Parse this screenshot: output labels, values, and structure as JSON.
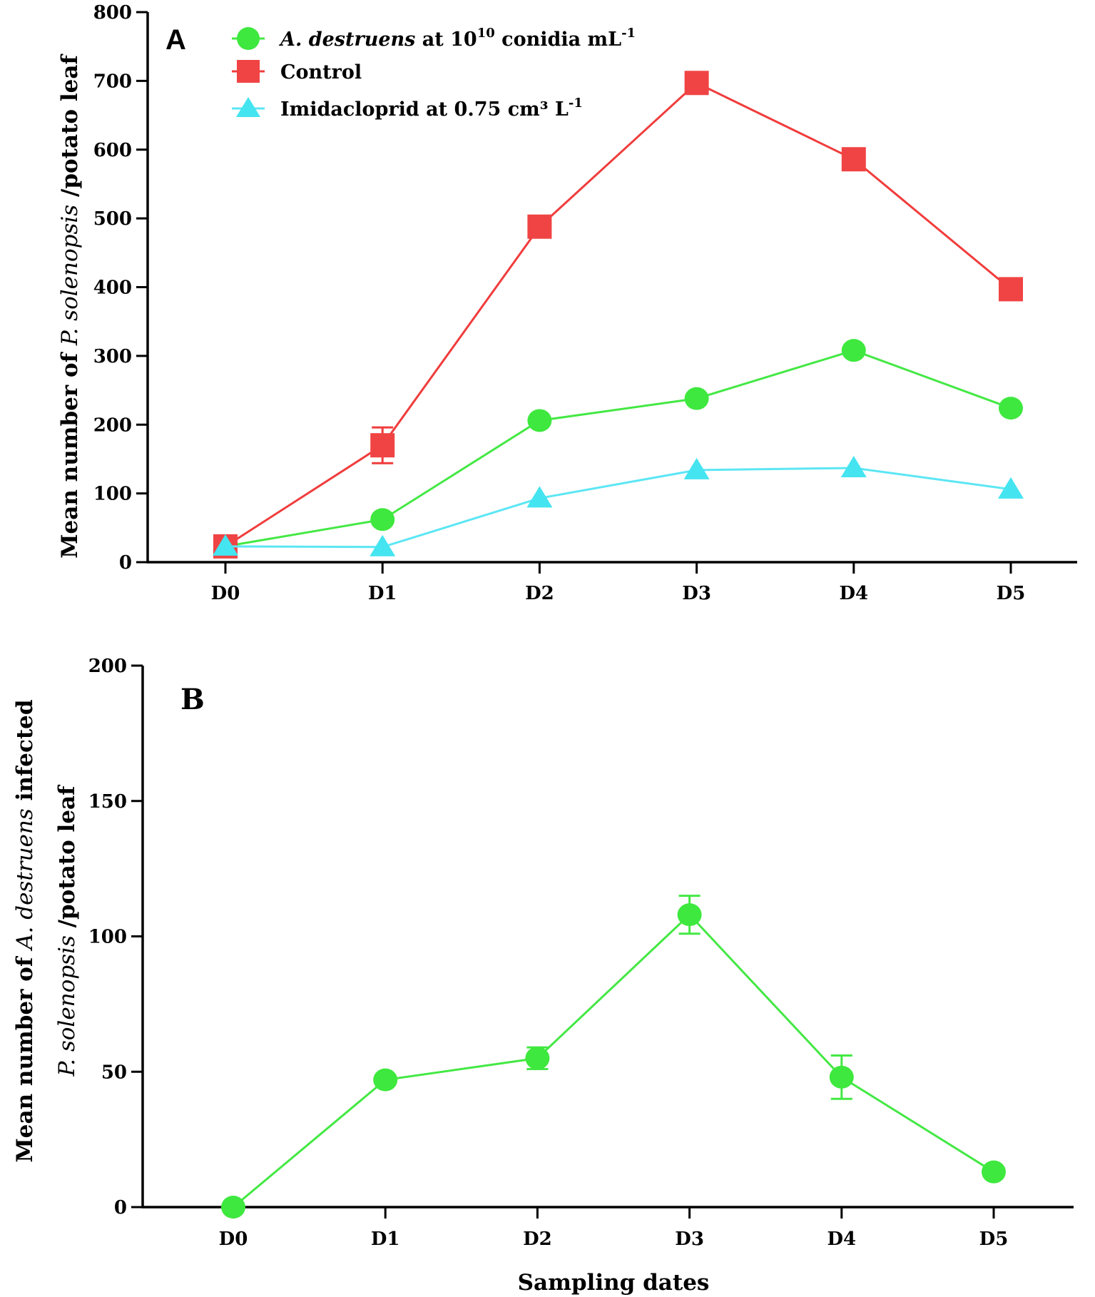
{
  "colors": {
    "green": "#3ee83e",
    "green_line": "#44e844",
    "red": "#f04444",
    "red_line": "#f03c3c",
    "cyan": "#44e4f0",
    "cyan_line": "#5ce6f4",
    "axis": "#000000"
  },
  "chart_data": [
    {
      "type": "line",
      "panel_label": "A",
      "categories": [
        "D0",
        "D1",
        "D2",
        "D3",
        "D4",
        "D5"
      ],
      "ylim": [
        0,
        800
      ],
      "yticks": [
        0,
        100,
        200,
        300,
        400,
        500,
        600,
        700,
        800
      ],
      "ylabel": {
        "prefix": "Mean number of ",
        "species": "P. solenopsis",
        "suffix": " /potato leaf"
      },
      "xlabel": "",
      "legend_placement": "top-left",
      "series": [
        {
          "name": "A. destruens at 10^10 conidia mL^-1",
          "legend": {
            "italic": "A. destruens",
            "rest": " at 10",
            "sup1": "10",
            "mid": " conidia mL",
            "sup2": "-1"
          },
          "marker": "circle",
          "color_key": "green",
          "values": [
            23,
            62,
            206,
            238,
            308,
            224
          ],
          "errors": [
            0,
            0,
            0,
            0,
            0,
            0
          ]
        },
        {
          "name": "Control",
          "legend": {
            "text": "Control"
          },
          "marker": "square",
          "color_key": "red",
          "values": [
            23,
            170,
            488,
            697,
            586,
            397
          ],
          "errors": [
            0,
            26,
            0,
            0,
            0,
            0
          ]
        },
        {
          "name": "Imidacloprid at 0.75 cm³ L-1",
          "legend": {
            "text": "Imidacloprid at 0.75 cm³ L",
            "sup": "-1"
          },
          "marker": "triangle",
          "color_key": "cyan",
          "values": [
            23,
            22,
            93,
            134,
            137,
            106
          ],
          "errors": [
            0,
            0,
            0,
            0,
            0,
            0
          ]
        }
      ]
    },
    {
      "type": "line",
      "panel_label": "B",
      "categories": [
        "D0",
        "D1",
        "D2",
        "D3",
        "D4",
        "D5"
      ],
      "ylim": [
        0,
        200
      ],
      "yticks": [
        0,
        50,
        100,
        150,
        200
      ],
      "ylabel_line1": {
        "prefix": "Mean number of ",
        "species": "A. destruens",
        "suffix": " infected"
      },
      "ylabel_line2": {
        "species": "P. solenopsis",
        "suffix": " /potato leaf"
      },
      "xlabel": "Sampling dates",
      "series": [
        {
          "name": "A. destruens infected",
          "marker": "circle",
          "color_key": "green",
          "values": [
            0,
            47,
            55,
            108,
            48,
            13
          ],
          "errors": [
            0,
            0,
            4,
            7,
            8,
            0
          ]
        }
      ]
    }
  ]
}
